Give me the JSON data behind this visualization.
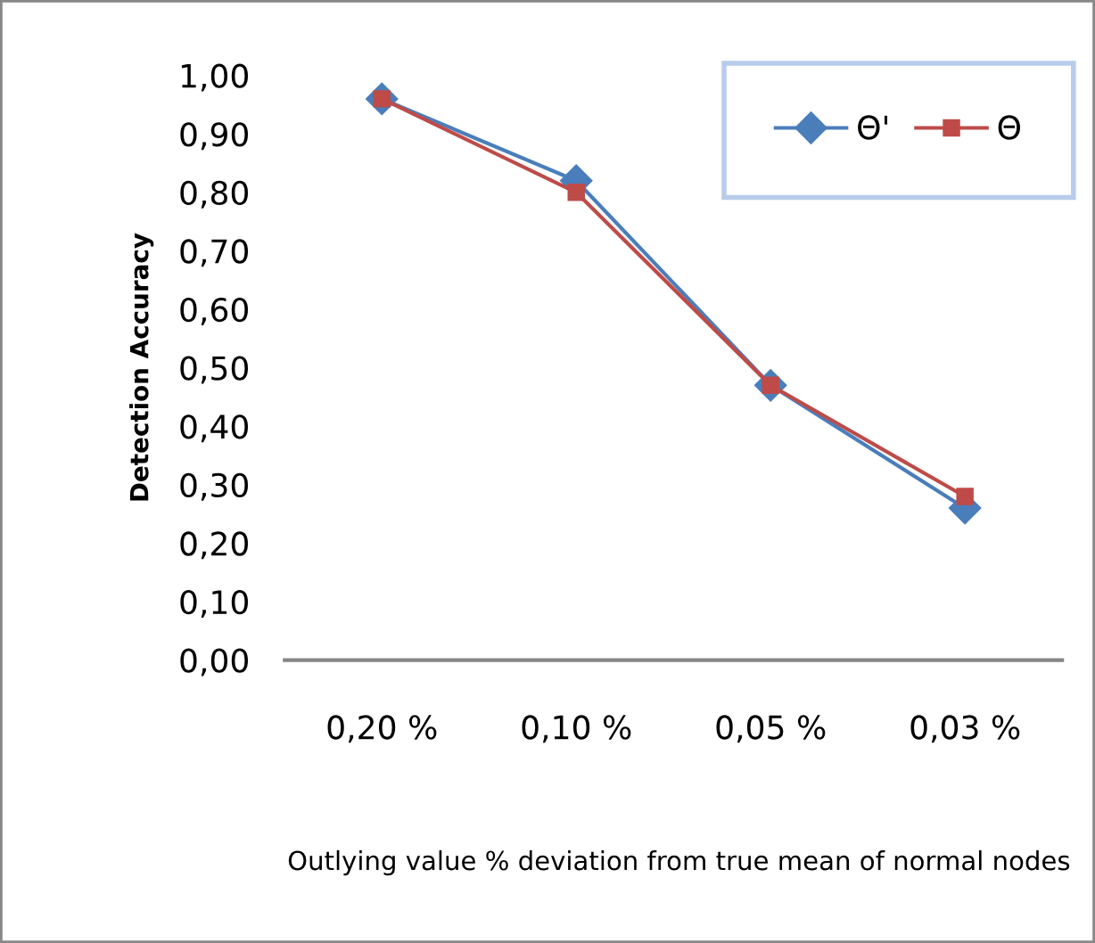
{
  "chart_data": {
    "type": "line",
    "xlabel": "Outlying value % deviation from true mean of normal nodes",
    "ylabel": "Detection Accuracy",
    "categories": [
      "0,20 %",
      "0,10 %",
      "0,05 %",
      "0,03 %"
    ],
    "series": [
      {
        "name": "Θ'",
        "color": "#4a7ebb",
        "marker": "diamond",
        "values": [
          0.96,
          0.82,
          0.47,
          0.26
        ]
      },
      {
        "name": "Θ",
        "color": "#be4b48",
        "marker": "square",
        "values": [
          0.96,
          0.8,
          0.47,
          0.28
        ]
      }
    ],
    "ylim": [
      0,
      1
    ],
    "yticks": [
      {
        "value": 0,
        "label": "0,00"
      },
      {
        "value": 0.1,
        "label": "0,10"
      },
      {
        "value": 0.2,
        "label": "0,20"
      },
      {
        "value": 0.3,
        "label": "0,30"
      },
      {
        "value": 0.4,
        "label": "0,40"
      },
      {
        "value": 0.5,
        "label": "0,50"
      },
      {
        "value": 0.6,
        "label": "0,60"
      },
      {
        "value": 0.7,
        "label": "0,70"
      },
      {
        "value": 0.8,
        "label": "0,80"
      },
      {
        "value": 0.9,
        "label": "0,90"
      },
      {
        "value": 1,
        "label": "1,00"
      }
    ],
    "grid": false,
    "legend": "top right",
    "line_style": "solid"
  }
}
